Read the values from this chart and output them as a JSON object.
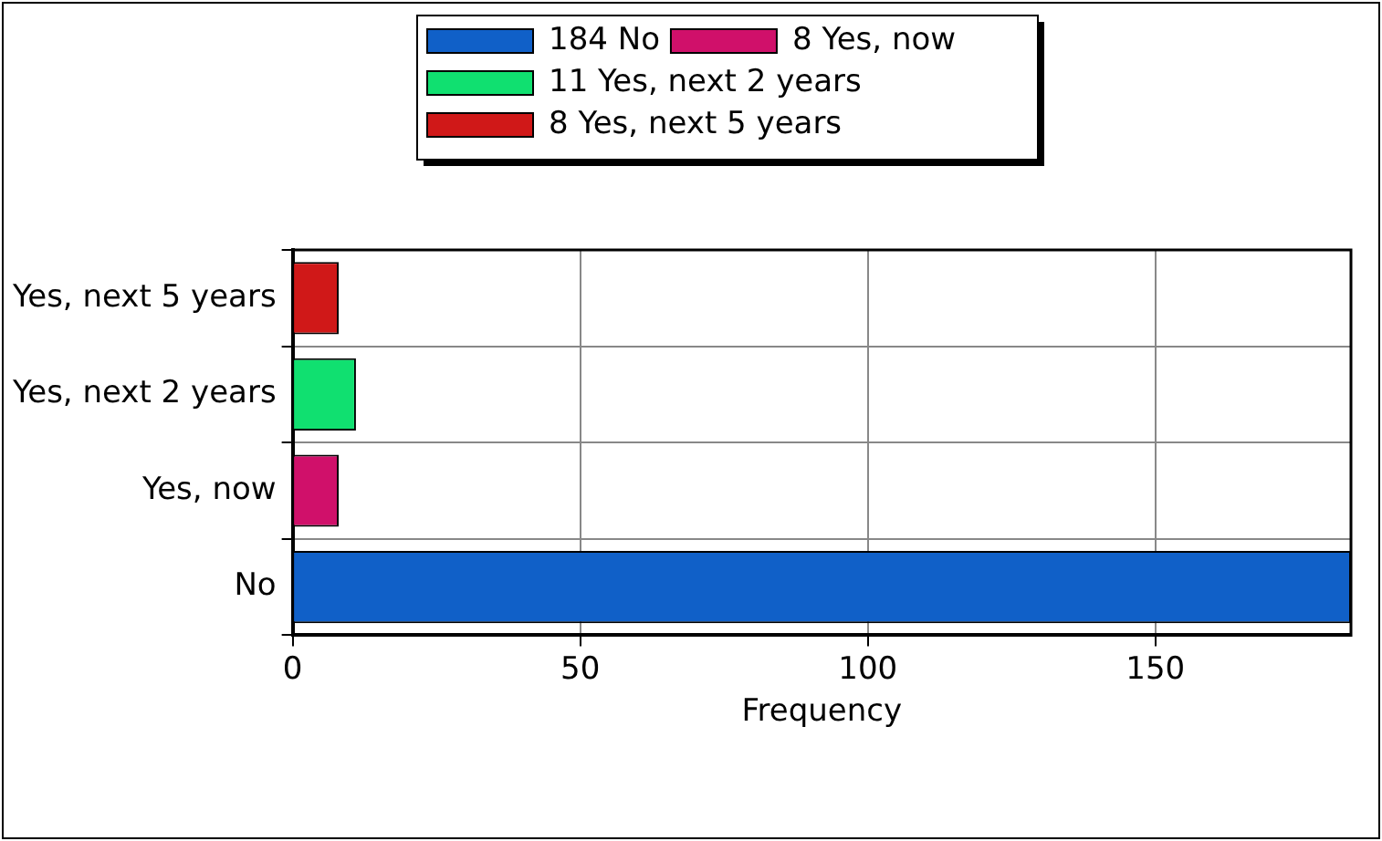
{
  "chart_data": {
    "type": "bar",
    "orientation": "horizontal",
    "categories": [
      "Yes, next 5 years",
      "Yes, next 2 years",
      "Yes, now",
      "No"
    ],
    "series": [
      {
        "name": "184 No",
        "color": "#1060c8",
        "values": [
          null,
          null,
          null,
          184
        ]
      },
      {
        "name": "8 Yes, now",
        "color": "#d0106a",
        "values": [
          null,
          null,
          8,
          null
        ]
      },
      {
        "name": "11 Yes, next 2 years",
        "color": "#10e070",
        "values": [
          null,
          11,
          null,
          null
        ]
      },
      {
        "name": "8 Yes, next 5 years",
        "color": "#d01818",
        "values": [
          8,
          null,
          null,
          null
        ]
      }
    ],
    "xlabel": "Frequency",
    "xlim": [
      0,
      184
    ],
    "xticks": [
      0,
      50,
      100,
      150
    ],
    "grid": true,
    "legend": "top"
  }
}
